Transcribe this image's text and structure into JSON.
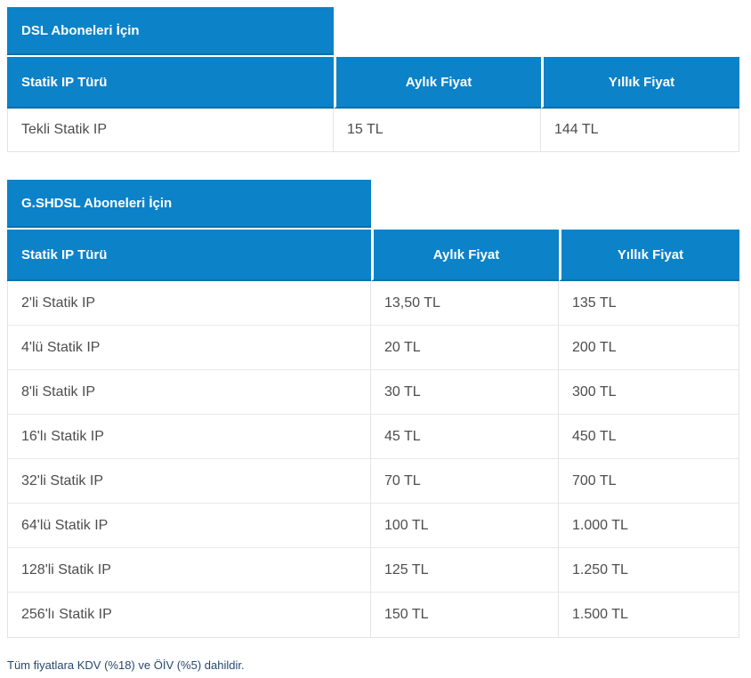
{
  "accent_color": "#0c82c8",
  "tables": [
    {
      "section_title": "DSL Aboneleri İçin",
      "columns": [
        "Statik IP Türü",
        "Aylık Fiyat",
        "Yıllık Fiyat"
      ],
      "rows": [
        [
          "Tekli Statik IP",
          "15 TL",
          "144 TL"
        ]
      ]
    },
    {
      "section_title": "G.SHDSL Aboneleri İçin",
      "columns": [
        "Statik IP Türü",
        "Aylık Fiyat",
        "Yıllık Fiyat"
      ],
      "rows": [
        [
          "2'li Statik IP",
          "13,50 TL",
          "135 TL"
        ],
        [
          "4'lü Statik IP",
          "20 TL",
          "200 TL"
        ],
        [
          "8'li Statik IP",
          "30 TL",
          "300 TL"
        ],
        [
          "16'lı Statik IP",
          "45 TL",
          "450 TL"
        ],
        [
          "32'li Statik IP",
          "70 TL",
          "700 TL"
        ],
        [
          "64'lü Statik IP",
          "100 TL",
          "1.000 TL"
        ],
        [
          "128'li Statik IP",
          "125 TL",
          "1.250 TL"
        ],
        [
          "256'lı Statik IP",
          "150 TL",
          "1.500 TL"
        ]
      ]
    }
  ],
  "footer": {
    "note": "Tüm fiyatlara KDV (%18) ve ÖİV (%5) dahildir."
  }
}
